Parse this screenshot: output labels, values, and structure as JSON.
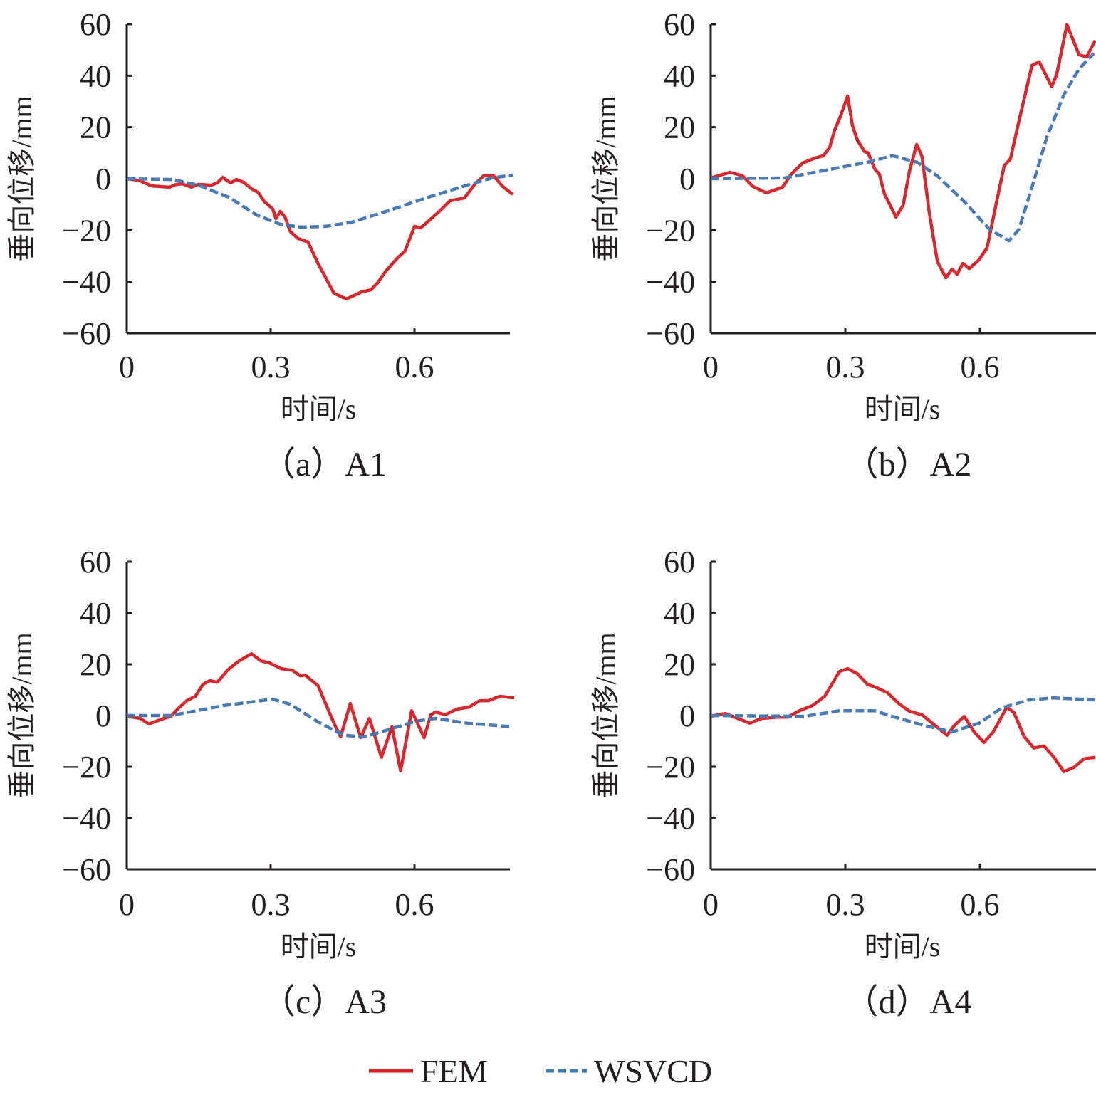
{
  "chart_data": [
    {
      "type": "line",
      "caption": "（a）A1",
      "xlabel": "时间/s",
      "ylabel": "垂向位移/mm",
      "xlim": [
        0,
        0.8
      ],
      "ylim": [
        -60,
        60
      ],
      "xticks": [
        0,
        0.3,
        0.6
      ],
      "xtick_labels": [
        "0",
        "0.3",
        "0.6"
      ],
      "yticks": [
        60,
        40,
        20,
        0,
        -20,
        -40,
        -60
      ],
      "ytick_labels": [
        "60",
        "40",
        "20",
        "0",
        "−20",
        "−40",
        "−60"
      ],
      "grid": false,
      "series": [
        {
          "name": "FEM",
          "x": [
            0,
            0.025,
            0.052,
            0.089,
            0.103,
            0.116,
            0.135,
            0.149,
            0.176,
            0.189,
            0.2,
            0.21,
            0.217,
            0.229,
            0.244,
            0.26,
            0.274,
            0.287,
            0.304,
            0.311,
            0.32,
            0.33,
            0.341,
            0.357,
            0.378,
            0.399,
            0.415,
            0.432,
            0.458,
            0.49,
            0.509,
            0.522,
            0.539,
            0.565,
            0.58,
            0.6,
            0.613,
            0.65,
            0.674,
            0.704,
            0.727,
            0.744,
            0.765,
            0.784,
            0.805
          ],
          "y": [
            0,
            -0.6,
            -2.8,
            -3.3,
            -2.2,
            -2,
            -3.3,
            -2.2,
            -2.5,
            -1.6,
            0.5,
            -0.8,
            -1.6,
            -0.3,
            -1.4,
            -3.9,
            -5.3,
            -8.9,
            -11.6,
            -15.5,
            -12.7,
            -14.9,
            -20.5,
            -23.2,
            -24.6,
            -33,
            -38.5,
            -44.5,
            -46.7,
            -44,
            -43.2,
            -40.7,
            -36.2,
            -30.7,
            -28.2,
            -18.5,
            -19.1,
            -13,
            -8.6,
            -7.5,
            -1.9,
            1.1,
            1.1,
            -3,
            -6.1
          ]
        },
        {
          "name": "WSVCD",
          "x": [
            0,
            0.095,
            0.149,
            0.213,
            0.271,
            0.32,
            0.362,
            0.415,
            0.469,
            0.549,
            0.629,
            0.71,
            0.762,
            0.805
          ],
          "y": [
            0,
            -0.3,
            -2.5,
            -7.2,
            -14.1,
            -17.7,
            -18.8,
            -18.5,
            -16.9,
            -12.2,
            -7.2,
            -2.5,
            0.3,
            1.4
          ]
        }
      ]
    },
    {
      "type": "line",
      "caption": "（b）A2",
      "xlabel": "时间/s",
      "ylabel": "垂向位移/mm",
      "xlim": [
        0,
        0.857
      ],
      "ylim": [
        -60,
        60
      ],
      "xticks": [
        0,
        0.3,
        0.6
      ],
      "xtick_labels": [
        "0",
        "0.3",
        "0.6"
      ],
      "yticks": [
        60,
        40,
        20,
        0,
        -20,
        -40,
        -60
      ],
      "ytick_labels": [
        "60",
        "40",
        "20",
        "0",
        "−20",
        "−40",
        "−60"
      ],
      "grid": false,
      "series": [
        {
          "name": "FEM",
          "x": [
            0,
            0.043,
            0.071,
            0.094,
            0.124,
            0.16,
            0.179,
            0.205,
            0.232,
            0.251,
            0.265,
            0.276,
            0.29,
            0.305,
            0.316,
            0.327,
            0.343,
            0.351,
            0.365,
            0.376,
            0.387,
            0.413,
            0.429,
            0.443,
            0.459,
            0.471,
            0.487,
            0.505,
            0.524,
            0.538,
            0.549,
            0.562,
            0.576,
            0.598,
            0.616,
            0.635,
            0.654,
            0.668,
            0.687,
            0.716,
            0.732,
            0.76,
            0.771,
            0.794,
            0.821,
            0.838,
            0.857
          ],
          "y": [
            0.3,
            2.5,
            1.1,
            -3,
            -5.5,
            -3.3,
            1.7,
            6.1,
            8,
            8.9,
            12.2,
            18.8,
            24.6,
            32.1,
            20.5,
            14.9,
            10.5,
            10,
            3.9,
            1.7,
            -5.8,
            -14.9,
            -10.2,
            3,
            13.3,
            8.6,
            -13,
            -32.1,
            -38.5,
            -35.1,
            -37.1,
            -32.9,
            -34.9,
            -31.5,
            -26.8,
            -10.8,
            5,
            7.7,
            22.4,
            44,
            45.4,
            35.7,
            40.4,
            59.8,
            48.1,
            47.3,
            53.7
          ]
        },
        {
          "name": "WSVCD",
          "x": [
            0,
            0.165,
            0.265,
            0.349,
            0.405,
            0.46,
            0.505,
            0.565,
            0.621,
            0.665,
            0.687,
            0.716,
            0.749,
            0.787,
            0.821,
            0.854
          ],
          "y": [
            0,
            0.3,
            3.6,
            6.4,
            8.9,
            6.4,
            1.1,
            -8.9,
            -19.6,
            -24.1,
            -19.6,
            -3.3,
            16.1,
            32.6,
            42.6,
            48.7
          ]
        }
      ]
    },
    {
      "type": "line",
      "caption": "（c）A3",
      "xlabel": "时间/s",
      "ylabel": "垂向位移/mm",
      "xlim": [
        0,
        0.8
      ],
      "ylim": [
        -60,
        60
      ],
      "xticks": [
        0,
        0.3,
        0.6
      ],
      "xtick_labels": [
        "0",
        "0.3",
        "0.6"
      ],
      "yticks": [
        60,
        40,
        20,
        0,
        -20,
        -40,
        -60
      ],
      "ytick_labels": [
        "60",
        "40",
        "20",
        "0",
        "−20",
        "−40",
        "−60"
      ],
      "grid": false,
      "series": [
        {
          "name": "FEM",
          "x": [
            0,
            0.028,
            0.046,
            0.073,
            0.092,
            0.106,
            0.125,
            0.143,
            0.159,
            0.173,
            0.189,
            0.21,
            0.234,
            0.26,
            0.28,
            0.298,
            0.322,
            0.345,
            0.362,
            0.372,
            0.399,
            0.412,
            0.432,
            0.446,
            0.466,
            0.488,
            0.506,
            0.531,
            0.553,
            0.571,
            0.594,
            0.62,
            0.634,
            0.644,
            0.664,
            0.688,
            0.714,
            0.736,
            0.754,
            0.778,
            0.808
          ],
          "y": [
            -0.3,
            -1.1,
            -3.3,
            -1.4,
            -0.3,
            2.5,
            5.8,
            7.5,
            12.2,
            13.6,
            13,
            17.7,
            21.3,
            24.1,
            21.3,
            20.5,
            18.3,
            17.7,
            15.5,
            15.8,
            11.6,
            5.8,
            -3,
            -8.3,
            4.7,
            -8.6,
            -1.1,
            -16.3,
            -4.4,
            -21.6,
            1.9,
            -8.6,
            0.3,
            1.4,
            0.3,
            2.5,
            3.3,
            5.8,
            5.8,
            7.5,
            6.9
          ]
        },
        {
          "name": "WSVCD",
          "x": [
            0,
            0.092,
            0.202,
            0.304,
            0.341,
            0.399,
            0.452,
            0.496,
            0.549,
            0.603,
            0.644,
            0.71,
            0.805
          ],
          "y": [
            0,
            0,
            3.9,
            6.4,
            4.4,
            -2.5,
            -7.7,
            -8.3,
            -5.3,
            -2.2,
            -1.1,
            -3,
            -4.4
          ]
        }
      ]
    },
    {
      "type": "line",
      "caption": "（d）A4",
      "xlabel": "时间/s",
      "ylabel": "垂向位移/mm",
      "xlim": [
        0,
        0.857
      ],
      "ylim": [
        -60,
        60
      ],
      "xticks": [
        0,
        0.3,
        0.6
      ],
      "xtick_labels": [
        "0",
        "0.3",
        "0.6"
      ],
      "yticks": [
        60,
        40,
        20,
        0,
        -20,
        -40,
        -60
      ],
      "ytick_labels": [
        "60",
        "40",
        "20",
        "0",
        "−20",
        "−40",
        "−60"
      ],
      "grid": false,
      "series": [
        {
          "name": "FEM",
          "x": [
            0,
            0.032,
            0.06,
            0.087,
            0.113,
            0.149,
            0.171,
            0.198,
            0.227,
            0.254,
            0.287,
            0.305,
            0.327,
            0.349,
            0.371,
            0.394,
            0.421,
            0.443,
            0.471,
            0.498,
            0.527,
            0.543,
            0.565,
            0.587,
            0.609,
            0.629,
            0.66,
            0.676,
            0.698,
            0.72,
            0.743,
            0.765,
            0.787,
            0.81,
            0.832,
            0.857
          ],
          "y": [
            -0.3,
            0.8,
            -1.1,
            -3,
            -1.1,
            -0.6,
            -0.6,
            1.9,
            3.9,
            7.5,
            17.2,
            18.3,
            16.3,
            12.2,
            10.8,
            8.9,
            4.4,
            1.7,
            0.3,
            -3.6,
            -7.7,
            -3.9,
            -0.3,
            -6.4,
            -10.5,
            -6.6,
            3.3,
            1.1,
            -8,
            -12.7,
            -11.9,
            -16.3,
            -21.9,
            -20.2,
            -16.9,
            -16.3
          ]
        },
        {
          "name": "WSVCD",
          "x": [
            0,
            0.21,
            0.287,
            0.365,
            0.41,
            0.476,
            0.538,
            0.598,
            0.649,
            0.71,
            0.765,
            0.857
          ],
          "y": [
            0,
            -0.3,
            1.9,
            1.9,
            -0.6,
            -3.9,
            -6.4,
            -3,
            3,
            6.1,
            6.9,
            6.1
          ]
        }
      ]
    }
  ],
  "legend": {
    "placement": "bottom-center",
    "items": [
      {
        "name": "FEM",
        "style": "solid",
        "color": "#d7282f"
      },
      {
        "name": "WSVCD",
        "style": "dashed",
        "color": "#4a7ab5"
      }
    ]
  },
  "colors": {
    "FEM": "#d7282f",
    "WSVCD": "#4a7ab5",
    "axis": "#231f20"
  }
}
